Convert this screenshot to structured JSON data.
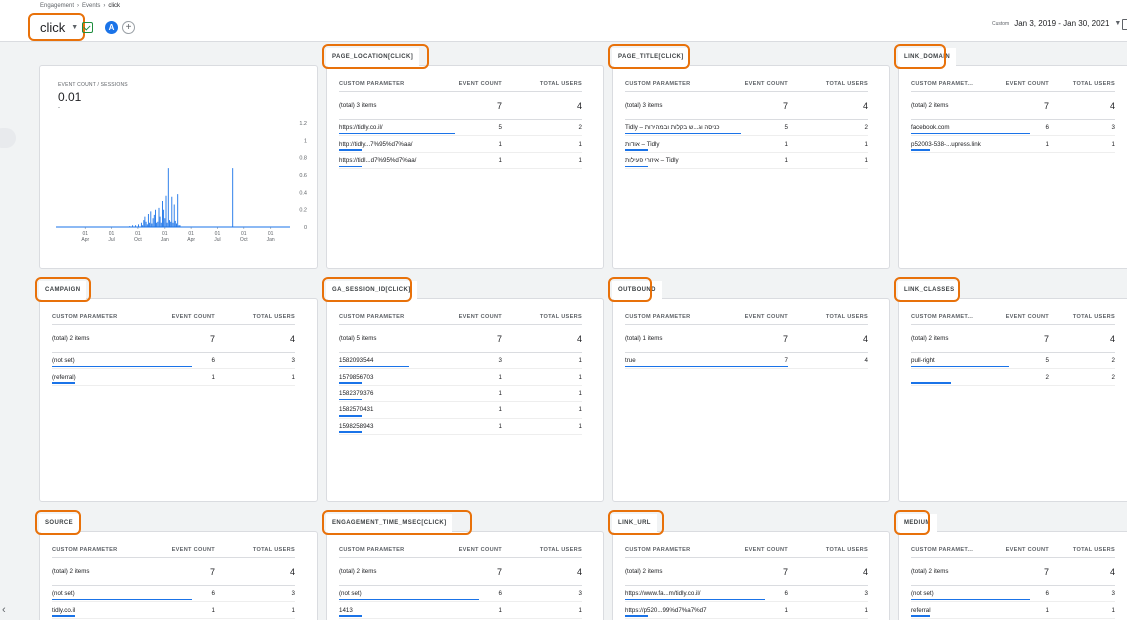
{
  "breadcrumb": [
    "Engagement",
    "Events",
    "click"
  ],
  "event_selector": {
    "value": "click"
  },
  "date_range": {
    "label": "Custom",
    "value": "Jan 3, 2019 - Jan 30, 2021"
  },
  "colors": {
    "accent": "#1a73e8",
    "highlight": "#e8710a",
    "save_icon": "#1e8e3e"
  },
  "icons": [
    "chevron-right-icon",
    "dropdown-caret-icon",
    "save-report-icon",
    "comparison-a-icon",
    "add-comparison-icon",
    "export-icon",
    "chevron-left-icon"
  ],
  "chart": {
    "label": "EVENT COUNT / SESSIONS",
    "value": "0.01",
    "value_sub": "-"
  },
  "chart_data": {
    "type": "line",
    "title": "EVENT COUNT / SESSIONS",
    "y_ticks": [
      "1.2",
      "1",
      "0.8",
      "0.6",
      "0.4",
      "0.2",
      "0"
    ],
    "ylim": [
      0,
      1.2
    ],
    "x_ticks": [
      [
        "01",
        "Apr"
      ],
      [
        "01",
        "Jul"
      ],
      [
        "01",
        "Oct"
      ],
      [
        "01",
        "Jan"
      ],
      [
        "01",
        "Apr"
      ],
      [
        "01",
        "Jul"
      ],
      [
        "01",
        "Oct"
      ],
      [
        "01",
        "Jan"
      ]
    ],
    "x_range": [
      0,
      800
    ],
    "tick_positions": [
      100,
      190,
      280,
      372,
      462,
      552,
      642,
      734
    ],
    "series": [
      {
        "points": [
          [
            0,
            0
          ],
          [
            250,
            0
          ],
          [
            252,
            0.01
          ],
          [
            262,
            0.02
          ],
          [
            272,
            0.02
          ],
          [
            282,
            0.03
          ],
          [
            292,
            0.05
          ],
          [
            296,
            0.02
          ],
          [
            300,
            0.08
          ],
          [
            304,
            0.12
          ],
          [
            308,
            0.06
          ],
          [
            312,
            0.03
          ],
          [
            316,
            0.15
          ],
          [
            320,
            0.05
          ],
          [
            324,
            0.18
          ],
          [
            328,
            0.04
          ],
          [
            332,
            0.1
          ],
          [
            336,
            0.14
          ],
          [
            340,
            0.2
          ],
          [
            344,
            0.05
          ],
          [
            348,
            0.06
          ],
          [
            352,
            0.22
          ],
          [
            356,
            0.12
          ],
          [
            360,
            0.05
          ],
          [
            364,
            0.3
          ],
          [
            368,
            0.2
          ],
          [
            372,
            0.1
          ],
          [
            376,
            0.36
          ],
          [
            380,
            0.05
          ],
          [
            384,
            0.68
          ],
          [
            388,
            0.08
          ],
          [
            392,
            0.06
          ],
          [
            396,
            0.35
          ],
          [
            400,
            0.05
          ],
          [
            404,
            0.26
          ],
          [
            408,
            0.07
          ],
          [
            412,
            0.04
          ],
          [
            416,
            0.38
          ],
          [
            420,
            0.02
          ],
          [
            424,
            0.02
          ],
          [
            430,
            0
          ],
          [
            600,
            0
          ],
          [
            604,
            0.68
          ],
          [
            608,
            0
          ],
          [
            800,
            0
          ]
        ]
      }
    ]
  },
  "table_header": {
    "param": "CUSTOM PARAMETER",
    "param_short": "CUSTOM PARAMET...",
    "count": "EVENT COUNT",
    "users": "TOTAL USERS"
  },
  "cards": [
    {
      "title": "PAGE_LOCATION[CLICK]",
      "total_label": "(total) 3 items",
      "total_count": "7",
      "total_users": "4",
      "rows": [
        {
          "param": "https://tidly.co.il/",
          "count": "5",
          "users": "2",
          "share": 0.71
        },
        {
          "param": "http://tidly...7%95%d7%aa/",
          "count": "1",
          "users": "1",
          "share": 0.14
        },
        {
          "param": "https://tidl...d7%95%d7%aa/",
          "count": "1",
          "users": "1",
          "share": 0.14
        }
      ]
    },
    {
      "title": "PAGE_TITLE[CLICK]",
      "total_label": "(total) 3 items",
      "total_count": "7",
      "total_users": "4",
      "rows": [
        {
          "param": "Tidly – כניסה וג...ש בקלות ובמהירות",
          "count": "5",
          "users": "2",
          "share": 0.71
        },
        {
          "param": "אודות – Tidly",
          "count": "1",
          "users": "1",
          "share": 0.14
        },
        {
          "param": "איזורי פעילות – Tidly",
          "count": "1",
          "users": "1",
          "share": 0.14
        }
      ]
    },
    {
      "title": "LINK_DOMAIN",
      "total_label": "(total) 2 items",
      "total_count": "7",
      "total_users": "4",
      "rows": [
        {
          "param": "facebook.com",
          "count": "6",
          "users": "3",
          "share": 0.86
        },
        {
          "param": "p52003-538-...upress.link",
          "count": "1",
          "users": "1",
          "share": 0.14
        }
      ]
    },
    {
      "title": "CAMPAIGN",
      "total_label": "(total) 2 items",
      "total_count": "7",
      "total_users": "4",
      "rows": [
        {
          "param": "(not set)",
          "count": "6",
          "users": "3",
          "share": 0.86
        },
        {
          "param": "(referral)",
          "count": "1",
          "users": "1",
          "share": 0.14
        }
      ]
    },
    {
      "title": "GA_SESSION_ID[CLICK]",
      "total_label": "(total) 5 items",
      "total_count": "7",
      "total_users": "4",
      "rows": [
        {
          "param": "1582093544",
          "count": "3",
          "users": "1",
          "share": 0.43
        },
        {
          "param": "1579856703",
          "count": "1",
          "users": "1",
          "share": 0.14
        },
        {
          "param": "1582379376",
          "count": "1",
          "users": "1",
          "share": 0.14
        },
        {
          "param": "1582570431",
          "count": "1",
          "users": "1",
          "share": 0.14
        },
        {
          "param": "1598258943",
          "count": "1",
          "users": "1",
          "share": 0.14
        }
      ]
    },
    {
      "title": "OUTBOUND",
      "total_label": "(total) 1 items",
      "total_count": "7",
      "total_users": "4",
      "rows": [
        {
          "param": "true",
          "count": "7",
          "users": "4",
          "share": 1.0
        }
      ]
    },
    {
      "title": "LINK_CLASSES",
      "total_label": "(total) 2 items",
      "total_count": "7",
      "total_users": "4",
      "rows": [
        {
          "param": "pull-right",
          "count": "5",
          "users": "2",
          "share": 0.71
        },
        {
          "param": "",
          "count": "2",
          "users": "2",
          "share": 0.29
        }
      ]
    },
    {
      "title": "SOURCE",
      "total_label": "(total) 2 items",
      "total_count": "7",
      "total_users": "4",
      "rows": [
        {
          "param": "(not set)",
          "count": "6",
          "users": "3",
          "share": 0.86
        },
        {
          "param": "tidly.co.il",
          "count": "1",
          "users": "1",
          "share": 0.14
        }
      ]
    },
    {
      "title": "ENGAGEMENT_TIME_MSEC[CLICK]",
      "total_label": "(total) 2 items",
      "total_count": "7",
      "total_users": "4",
      "rows": [
        {
          "param": "(not set)",
          "count": "6",
          "users": "3",
          "share": 0.86
        },
        {
          "param": "1413",
          "count": "1",
          "users": "1",
          "share": 0.14
        }
      ]
    },
    {
      "title": "LINK_URL",
      "total_label": "(total) 2 items",
      "total_count": "7",
      "total_users": "4",
      "rows": [
        {
          "param": "https://www.fa...m/tidly.co.il/",
          "count": "6",
          "users": "3",
          "share": 0.86
        },
        {
          "param": "https://p520...99%d7%a7%d7",
          "count": "1",
          "users": "1",
          "share": 0.14
        }
      ]
    },
    {
      "title": "MEDIUM",
      "total_label": "(total) 2 items",
      "total_count": "7",
      "total_users": "4",
      "rows": [
        {
          "param": "(not set)",
          "count": "6",
          "users": "3",
          "share": 0.86
        },
        {
          "param": "referral",
          "count": "1",
          "users": "1",
          "share": 0.14
        }
      ]
    }
  ]
}
